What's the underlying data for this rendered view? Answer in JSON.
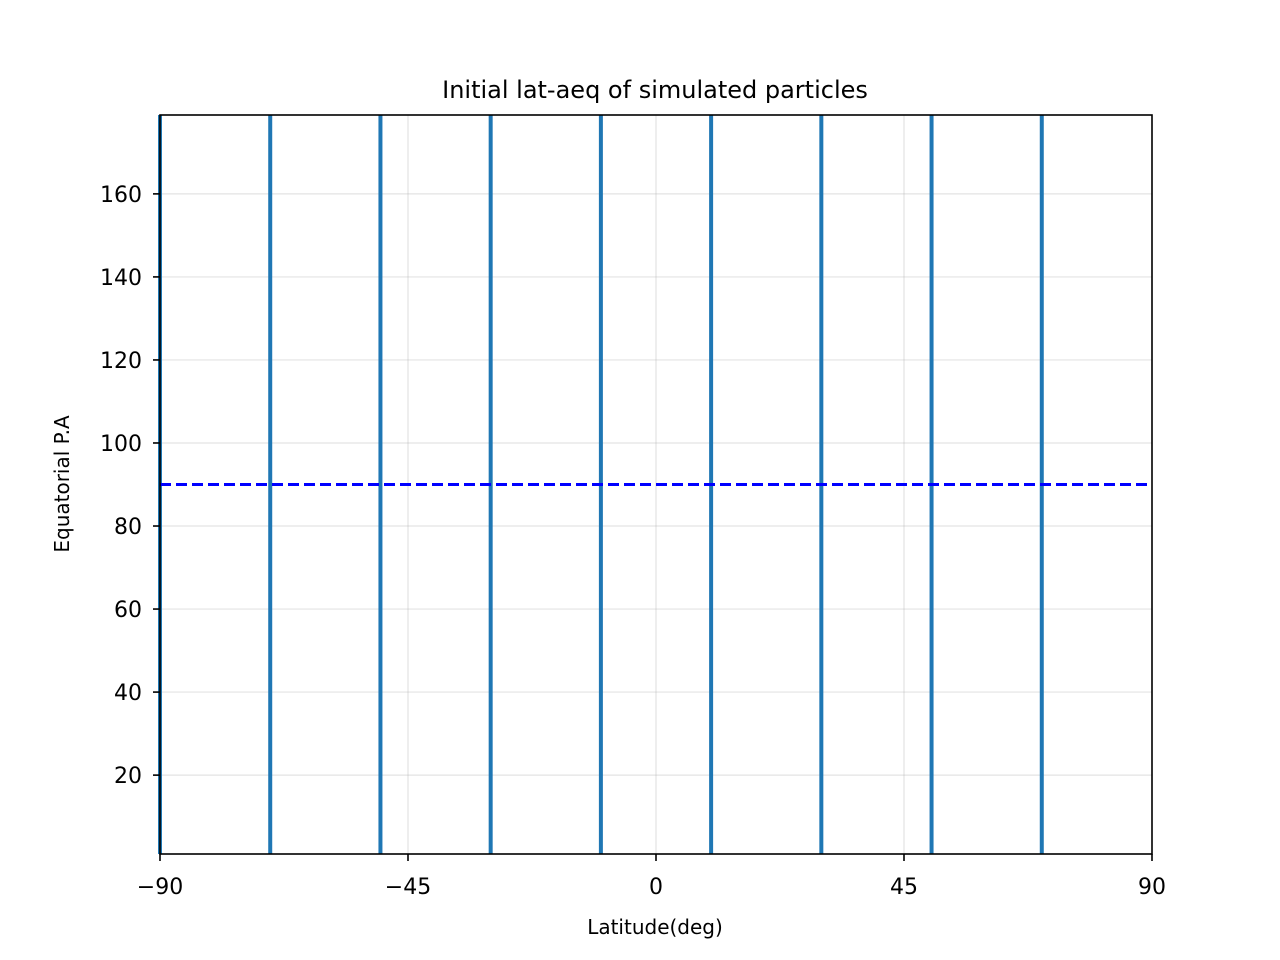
{
  "chart_data": {
    "type": "line",
    "title": "Initial lat-aeq of simulated particles",
    "xlabel": "Latitude(deg)",
    "ylabel": "Equatorial P.A",
    "xlim": [
      -90,
      90
    ],
    "ylim": [
      1,
      179
    ],
    "xticks": [
      -90,
      -45,
      0,
      45,
      90
    ],
    "xtick_labels": [
      "−90",
      "−45",
      "0",
      "45",
      "90"
    ],
    "yticks": [
      20,
      40,
      60,
      80,
      100,
      120,
      140,
      160
    ],
    "ytick_labels": [
      "20",
      "40",
      "60",
      "80",
      "100",
      "120",
      "140",
      "160"
    ],
    "grid": true,
    "legend": "none",
    "series": [
      {
        "style": "solid-vertical-lines",
        "color": "#1f77b4",
        "x": [
          -90,
          -70,
          -50,
          -30,
          -10,
          10,
          30,
          50,
          70
        ],
        "y_range": [
          1,
          179
        ]
      },
      {
        "style": "dashed-horizontal-line",
        "color": "#0000ff",
        "y": 90,
        "x_range": [
          -90,
          90
        ]
      }
    ]
  }
}
